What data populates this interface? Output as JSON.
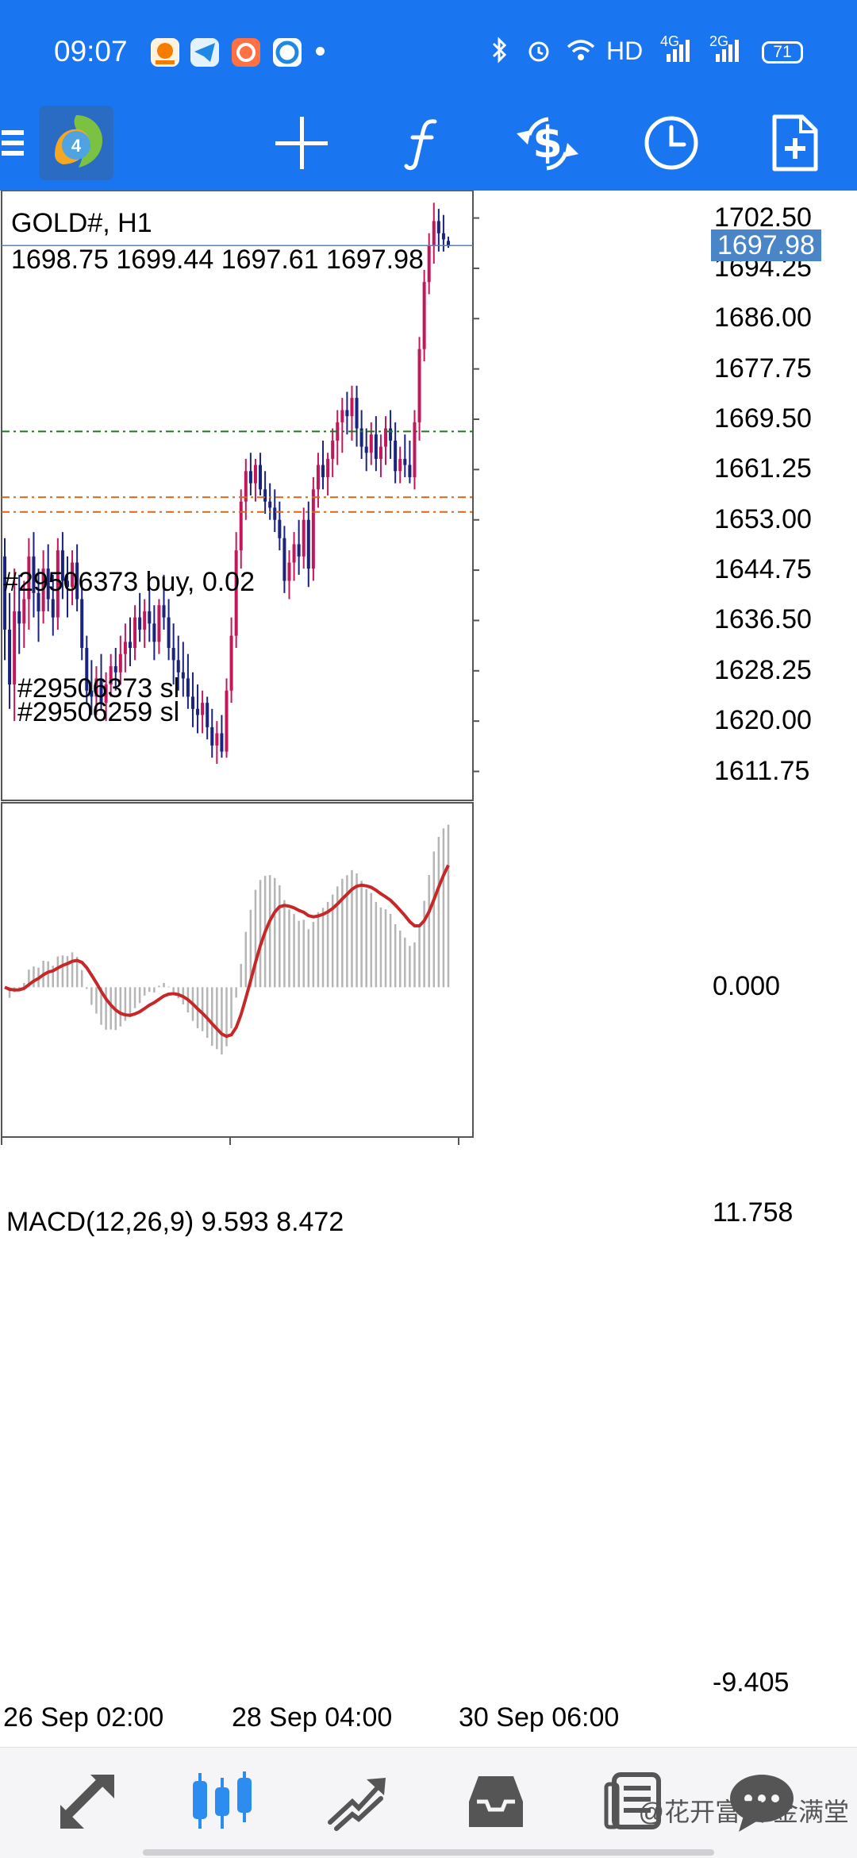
{
  "status_bar": {
    "time": "09:07",
    "network_label": "HD",
    "signal_1": "4G",
    "signal_2": "2G",
    "battery": "71",
    "icons": [
      "app-orange-icon",
      "telegram-icon",
      "app-red-icon",
      "app-blue-icon",
      "bluetooth-icon",
      "alarm-icon",
      "wifi-icon",
      "signal-icon"
    ]
  },
  "toolbar": {
    "items": [
      "menu-icon",
      "metatrader-logo",
      "crosshair-icon",
      "function-icon",
      "change-symbol-icon",
      "timeframe-clock-icon",
      "new-order-icon"
    ]
  },
  "chart": {
    "symbol": "GOLD#, H1",
    "ohlc": "1698.75 1699.44 1697.61 1697.98",
    "current_price": "1697.98",
    "price_ticks": [
      "1702.50",
      "1694.25",
      "1686.00",
      "1677.75",
      "1669.50",
      "1661.25",
      "1653.00",
      "1644.75",
      "1636.50",
      "1628.25",
      "1620.00",
      "1611.75"
    ],
    "order_lines": [
      {
        "label": "#29506373 buy, 0.02",
        "price": 1667.5,
        "color": "#1e7a1e"
      },
      {
        "label": "#29506373 sl",
        "price": 1656.7,
        "color": "#d2691e"
      },
      {
        "label": "#29506259 sl",
        "price": 1654.3,
        "color": "#d2691e"
      }
    ],
    "bull_color": "#c2185b",
    "bear_color": "#1a237e",
    "bid_line_color": "#4a86c7"
  },
  "macd": {
    "label": "MACD(12,26,9) 9.593 8.472",
    "ticks": [
      "11.758",
      "0.000",
      "-9.405"
    ],
    "signal_color": "#c62828",
    "hist_color": "#b5b5b5"
  },
  "time_axis": {
    "labels": [
      "26 Sep 02:00",
      "28 Sep 04:00",
      "30 Sep 06:00"
    ]
  },
  "bottom_nav": {
    "items": [
      "quotes-icon",
      "chart-icon",
      "trade-icon",
      "history-icon",
      "news-icon",
      "chat-icon"
    ],
    "active": "chart-icon",
    "watermark": "@花开富贵 金满堂"
  },
  "chart_data": {
    "type": "candlestick",
    "title": "GOLD#, H1",
    "ylim": [
      1607,
      1707
    ],
    "ohlc_bars": [
      [
        1647,
        1650,
        1630,
        1635
      ],
      [
        1635,
        1641,
        1622,
        1626
      ],
      [
        1626,
        1645,
        1620,
        1638
      ],
      [
        1638,
        1644,
        1631,
        1636
      ],
      [
        1636,
        1643,
        1632,
        1640
      ],
      [
        1640,
        1650,
        1635,
        1647
      ],
      [
        1647,
        1651,
        1637,
        1641
      ],
      [
        1641,
        1645,
        1633,
        1638
      ],
      [
        1638,
        1648,
        1636,
        1645
      ],
      [
        1645,
        1649,
        1638,
        1640
      ],
      [
        1640,
        1644,
        1634,
        1637
      ],
      [
        1637,
        1650,
        1635,
        1648
      ],
      [
        1648,
        1651,
        1640,
        1643
      ],
      [
        1643,
        1647,
        1637,
        1642
      ],
      [
        1642,
        1648,
        1639,
        1646
      ],
      [
        1646,
        1649,
        1638,
        1640
      ],
      [
        1640,
        1643,
        1630,
        1632
      ],
      [
        1632,
        1634,
        1623,
        1625
      ],
      [
        1625,
        1630,
        1621,
        1624
      ],
      [
        1624,
        1629,
        1621,
        1627
      ],
      [
        1627,
        1631,
        1622,
        1623
      ],
      [
        1623,
        1628,
        1620,
        1626
      ],
      [
        1626,
        1631,
        1624,
        1629
      ],
      [
        1629,
        1632,
        1625,
        1628
      ],
      [
        1628,
        1634,
        1626,
        1631
      ],
      [
        1631,
        1636,
        1628,
        1633
      ],
      [
        1633,
        1637,
        1629,
        1632
      ],
      [
        1632,
        1639,
        1630,
        1637
      ],
      [
        1637,
        1641,
        1633,
        1635
      ],
      [
        1635,
        1640,
        1632,
        1638
      ],
      [
        1638,
        1642,
        1633,
        1636
      ],
      [
        1636,
        1639,
        1630,
        1633
      ],
      [
        1633,
        1640,
        1631,
        1639
      ],
      [
        1639,
        1644,
        1635,
        1637
      ],
      [
        1637,
        1640,
        1630,
        1632
      ],
      [
        1632,
        1636,
        1626,
        1630
      ],
      [
        1630,
        1634,
        1625,
        1628
      ],
      [
        1628,
        1633,
        1624,
        1627
      ],
      [
        1627,
        1631,
        1622,
        1624
      ],
      [
        1624,
        1628,
        1619,
        1622
      ],
      [
        1622,
        1626,
        1618,
        1621
      ],
      [
        1621,
        1625,
        1618,
        1623
      ],
      [
        1623,
        1624,
        1617,
        1619
      ],
      [
        1619,
        1622,
        1614,
        1616
      ],
      [
        1616,
        1620,
        1613,
        1618
      ],
      [
        1618,
        1621,
        1614,
        1615
      ],
      [
        1615,
        1627,
        1614,
        1625
      ],
      [
        1625,
        1637,
        1623,
        1634
      ],
      [
        1634,
        1651,
        1632,
        1648
      ],
      [
        1648,
        1658,
        1645,
        1656
      ],
      [
        1656,
        1663,
        1653,
        1661
      ],
      [
        1661,
        1664,
        1657,
        1659
      ],
      [
        1659,
        1663,
        1656,
        1662
      ],
      [
        1662,
        1664,
        1657,
        1658
      ],
      [
        1658,
        1661,
        1654,
        1656
      ],
      [
        1656,
        1659,
        1653,
        1655
      ],
      [
        1655,
        1658,
        1651,
        1653
      ],
      [
        1653,
        1656,
        1648,
        1650
      ],
      [
        1650,
        1652,
        1641,
        1643
      ],
      [
        1643,
        1648,
        1640,
        1646
      ],
      [
        1646,
        1651,
        1643,
        1649
      ],
      [
        1649,
        1653,
        1644,
        1647
      ],
      [
        1647,
        1655,
        1645,
        1653
      ],
      [
        1653,
        1656,
        1642,
        1645
      ],
      [
        1645,
        1660,
        1643,
        1658
      ],
      [
        1658,
        1664,
        1655,
        1662
      ],
      [
        1662,
        1666,
        1658,
        1660
      ],
      [
        1660,
        1664,
        1657,
        1663
      ],
      [
        1663,
        1668,
        1660,
        1666
      ],
      [
        1666,
        1671,
        1662,
        1669
      ],
      [
        1669,
        1673,
        1664,
        1671
      ],
      [
        1671,
        1674,
        1667,
        1670
      ],
      [
        1670,
        1675,
        1666,
        1673
      ],
      [
        1673,
        1675,
        1665,
        1668
      ],
      [
        1668,
        1671,
        1663,
        1665
      ],
      [
        1665,
        1668,
        1661,
        1664
      ],
      [
        1664,
        1669,
        1662,
        1667
      ],
      [
        1667,
        1670,
        1661,
        1663
      ],
      [
        1663,
        1667,
        1660,
        1665
      ],
      [
        1665,
        1670,
        1662,
        1668
      ],
      [
        1668,
        1671,
        1663,
        1666
      ],
      [
        1666,
        1669,
        1659,
        1661
      ],
      [
        1661,
        1665,
        1659,
        1663
      ],
      [
        1663,
        1667,
        1660,
        1662
      ],
      [
        1662,
        1666,
        1659,
        1660
      ],
      [
        1660,
        1671,
        1658,
        1669
      ],
      [
        1669,
        1683,
        1666,
        1681
      ],
      [
        1681,
        1694,
        1679,
        1692
      ],
      [
        1692,
        1700,
        1690,
        1698
      ],
      [
        1698,
        1705,
        1695,
        1702
      ],
      [
        1702,
        1704,
        1697,
        1700
      ],
      [
        1700,
        1703,
        1697,
        1699
      ],
      [
        1698.75,
        1699.44,
        1697.61,
        1697.98
      ]
    ]
  }
}
